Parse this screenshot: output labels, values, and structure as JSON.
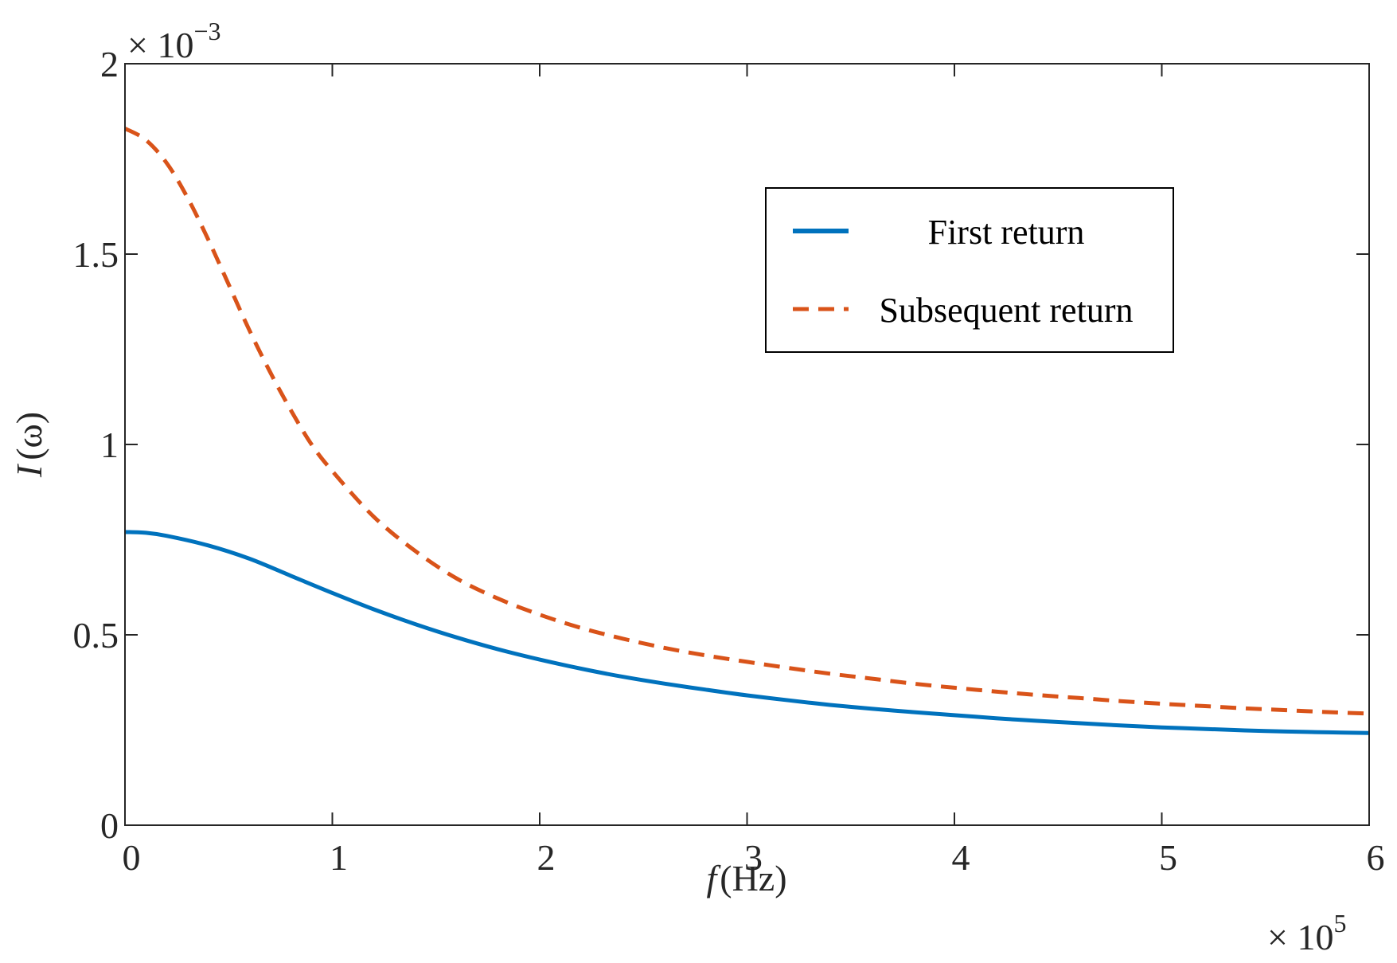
{
  "chart_data": {
    "type": "line",
    "xlabel_var": "f",
    "xlabel_unit": "(Hz)",
    "ylabel_var": "I",
    "ylabel_arg": "(ω)",
    "x_multiplier": {
      "base": "× 10",
      "exponent": "5"
    },
    "y_multiplier": {
      "base": "× 10",
      "exponent": "−3"
    },
    "xlim": [
      0,
      6
    ],
    "ylim": [
      0,
      2
    ],
    "x_ticks": [
      0,
      1,
      2,
      3,
      4,
      5,
      6
    ],
    "x_tick_labels": [
      "0",
      "1",
      "2",
      "3",
      "4",
      "5",
      "6"
    ],
    "y_ticks": [
      0,
      0.5,
      1,
      1.5,
      2
    ],
    "y_tick_labels": [
      "0",
      "0.5",
      "1",
      "1.5",
      "2"
    ],
    "grid": false,
    "legend_position": "top-right",
    "series": [
      {
        "name": "First return",
        "color": "#0072BD",
        "style": "solid",
        "x": [
          0,
          0.1,
          0.2,
          0.4,
          0.6,
          0.8,
          1.0,
          1.2,
          1.4,
          1.6,
          1.8,
          2.0,
          2.2,
          2.4,
          2.6,
          2.8,
          3.0,
          3.2,
          3.4,
          3.6,
          3.8,
          4.0,
          4.2,
          4.4,
          4.6,
          4.8,
          5.0,
          5.2,
          5.4,
          5.6,
          5.8,
          6.0
        ],
        "y": [
          0.77,
          0.768,
          0.76,
          0.735,
          0.7,
          0.655,
          0.61,
          0.567,
          0.528,
          0.493,
          0.462,
          0.435,
          0.411,
          0.39,
          0.372,
          0.356,
          0.341,
          0.328,
          0.316,
          0.306,
          0.297,
          0.289,
          0.281,
          0.274,
          0.268,
          0.262,
          0.257,
          0.253,
          0.249,
          0.246,
          0.244,
          0.242
        ]
      },
      {
        "name": "Subsequent return",
        "color": "#D95319",
        "style": "dashed",
        "x": [
          0,
          0.1,
          0.2,
          0.3,
          0.4,
          0.5,
          0.6,
          0.7,
          0.8,
          0.9,
          1.0,
          1.2,
          1.4,
          1.6,
          1.8,
          2.0,
          2.2,
          2.4,
          2.6,
          2.8,
          3.0,
          3.2,
          3.4,
          3.6,
          3.8,
          4.0,
          4.2,
          4.4,
          4.6,
          4.8,
          5.0,
          5.2,
          5.4,
          5.6,
          5.8,
          6.0
        ],
        "y": [
          1.83,
          1.8,
          1.74,
          1.65,
          1.54,
          1.42,
          1.3,
          1.19,
          1.09,
          1.0,
          0.93,
          0.81,
          0.72,
          0.648,
          0.595,
          0.553,
          0.518,
          0.49,
          0.466,
          0.446,
          0.429,
          0.413,
          0.398,
          0.385,
          0.372,
          0.361,
          0.351,
          0.342,
          0.334,
          0.326,
          0.319,
          0.313,
          0.307,
          0.302,
          0.297,
          0.293
        ]
      }
    ]
  }
}
